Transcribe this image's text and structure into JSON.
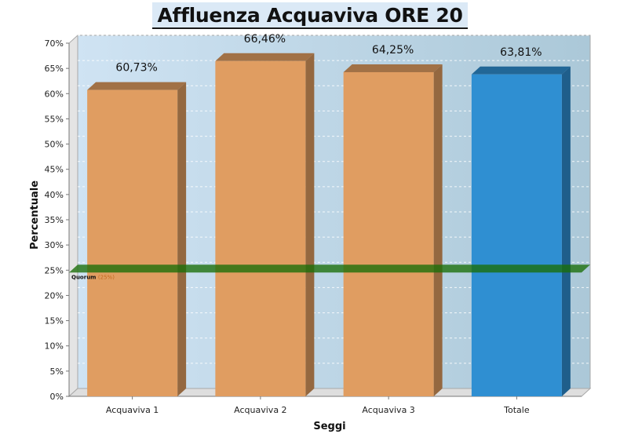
{
  "chart_data": {
    "type": "bar",
    "title": "Affluenza Acquaviva ORE 20",
    "xlabel": "Seggi",
    "ylabel": "Percentuale",
    "categories": [
      "Acquaviva 1",
      "Acquaviva 2",
      "Acquaviva 3",
      "Totale"
    ],
    "values": [
      60.73,
      66.46,
      64.25,
      63.81
    ],
    "value_labels": [
      "60,73%",
      "66,46%",
      "64,25%",
      "63,81%"
    ],
    "ylim": [
      0,
      70
    ],
    "yticks": [
      0,
      5,
      10,
      15,
      20,
      25,
      30,
      35,
      40,
      45,
      50,
      55,
      60,
      65,
      70
    ],
    "ytick_labels": [
      "0%",
      "5%",
      "10%",
      "15%",
      "20%",
      "25%",
      "30%",
      "35%",
      "40%",
      "45%",
      "50%",
      "55%",
      "60%",
      "65%",
      "70%"
    ],
    "grid": true,
    "legend": "none",
    "bar_colors": [
      "#e09d61",
      "#e09d61",
      "#e09d61",
      "#2f8fd2"
    ],
    "reference_line": {
      "value": 25,
      "label": "Quorum",
      "sublabel": "(25%)",
      "color": "#1a6e08"
    }
  }
}
